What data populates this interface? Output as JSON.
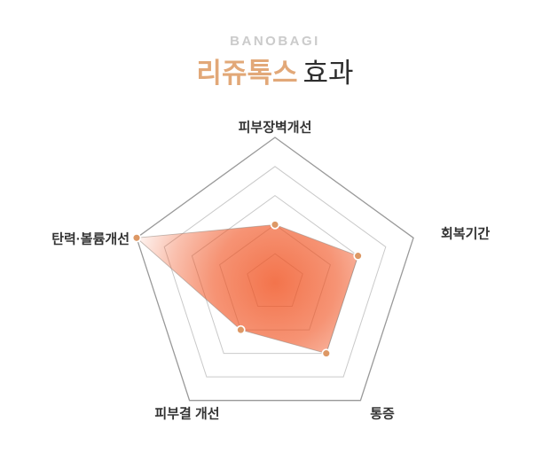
{
  "header": {
    "brand": "BANOBAGI",
    "title_highlight": "리쥬톡스",
    "title_rest": "효과",
    "highlight_color": "#E2A878",
    "brand_color": "#CBCBCB"
  },
  "chart_data": {
    "type": "radar",
    "categories": [
      "피부장벽개선",
      "회복기간",
      "통증",
      "피부결 개선",
      "탄력·볼륨개선"
    ],
    "series": [
      {
        "name": "리쥬톡스",
        "values": [
          2,
          3,
          3,
          2,
          5
        ]
      }
    ],
    "max": 5,
    "levels": 5,
    "start_axis": "top",
    "direction": "clockwise",
    "grid": "pentagon",
    "legend": false,
    "colors": {
      "fill": "#F0511F",
      "point": "#DD9865",
      "point_ring": "#FFFFFF",
      "data_stroke": "#9B8D86",
      "grid_outer": "#999999",
      "grid_inner": "#C9C9C9",
      "label": "#333333"
    }
  }
}
